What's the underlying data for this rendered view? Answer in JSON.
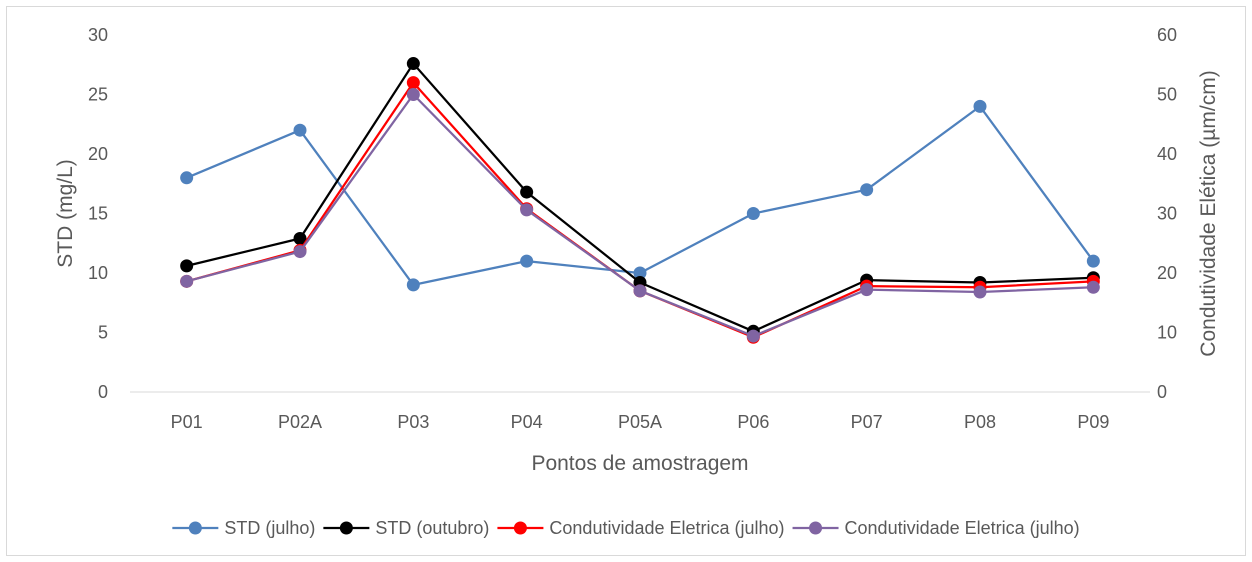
{
  "chart_data": {
    "type": "line",
    "categories": [
      "P01",
      "P02A",
      "P03",
      "P04",
      "P05A",
      "P06",
      "P07",
      "P08",
      "P09"
    ],
    "xlabel": "Pontos de amostragem",
    "ylabel_left": "STD (mg/L)",
    "ylabel_right": "Condutividade Elética (µm/cm)",
    "ylim_left": [
      0,
      30
    ],
    "yticks_left": [
      "0",
      "5",
      "10",
      "15",
      "20",
      "25",
      "30"
    ],
    "ylim_right": [
      0,
      60
    ],
    "yticks_right": [
      "0",
      "10",
      "20",
      "30",
      "40",
      "50",
      "60"
    ],
    "grid": false,
    "legend_position": "bottom",
    "series": [
      {
        "name": "STD (julho)",
        "axis": "left",
        "color": "#4f81bd",
        "values": [
          18,
          22,
          9,
          11,
          10,
          15,
          17,
          24,
          11
        ]
      },
      {
        "name": "STD (outubro)",
        "axis": "left",
        "color": "#000000",
        "values": [
          10.6,
          12.9,
          27.6,
          16.8,
          9.2,
          5.1,
          9.4,
          9.2,
          9.6
        ]
      },
      {
        "name": "Condutividade Eletrica (julho)",
        "axis": "right",
        "color": "#ff0000",
        "values": [
          18.6,
          23.8,
          52.0,
          30.8,
          17.0,
          9.2,
          17.8,
          17.6,
          18.6
        ]
      },
      {
        "name": "Condutividade Eletrica (julho)",
        "axis": "right",
        "color": "#8064a2",
        "values": [
          18.6,
          23.6,
          50.0,
          30.6,
          17.0,
          9.4,
          17.2,
          16.8,
          17.6
        ]
      }
    ]
  }
}
